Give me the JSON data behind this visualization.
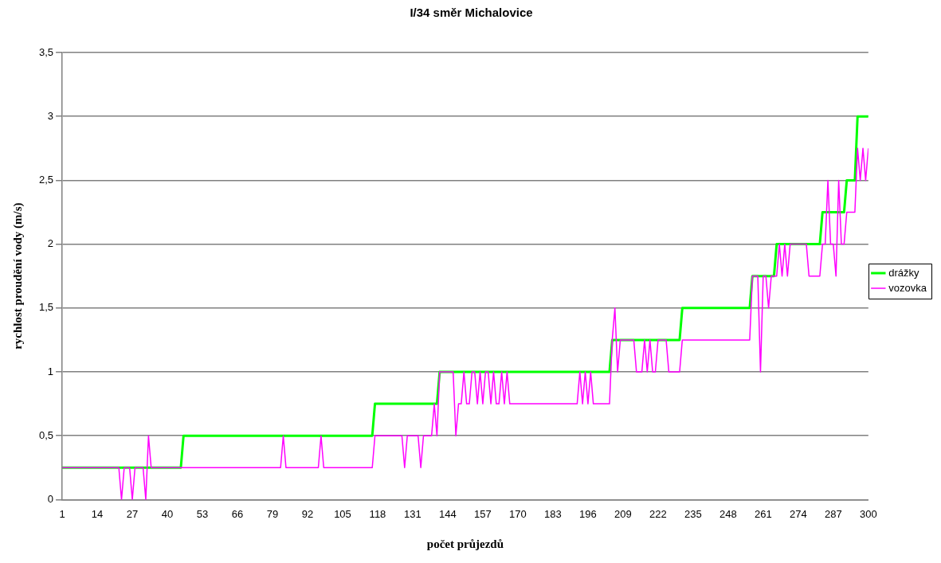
{
  "chart_data": {
    "type": "line",
    "title": "I/34 směr Michalovice",
    "xlabel": "počet průjezdů",
    "ylabel": "rychlost proudění vody (m/s)",
    "xlim": [
      1,
      300
    ],
    "xticks": [
      1,
      14,
      27,
      40,
      53,
      66,
      79,
      92,
      105,
      118,
      131,
      144,
      157,
      170,
      183,
      196,
      209,
      222,
      235,
      248,
      261,
      274,
      287,
      300
    ],
    "ylim": [
      0,
      3.5
    ],
    "yticks": [
      0,
      {
        "value": 0.5,
        "label": "0,5"
      },
      1,
      {
        "value": 1.5,
        "label": "1,5"
      },
      2,
      {
        "value": 2.5,
        "label": "2,5"
      },
      3,
      {
        "value": 3.5,
        "label": "3,5"
      }
    ],
    "grid": "y",
    "legend": "right",
    "marker": "none",
    "line_style": "solid",
    "series": [
      {
        "name": "drážky",
        "color": "#00ff00",
        "x": [
          1,
          45,
          46,
          116,
          117,
          140,
          141,
          204,
          205,
          230,
          231,
          256,
          257,
          265,
          266,
          282,
          283,
          291,
          292,
          295,
          296,
          300
        ],
        "values": [
          0.25,
          0.25,
          0.5,
          0.5,
          0.75,
          0.75,
          1,
          1,
          1.25,
          1.25,
          1.5,
          1.5,
          1.75,
          1.75,
          2,
          2,
          2.25,
          2.25,
          2.5,
          2.5,
          3,
          3
        ]
      },
      {
        "name": "vozovka",
        "color": "#ff00ff",
        "x": [
          1,
          22,
          23,
          24,
          26,
          27,
          28,
          31,
          32,
          33,
          34,
          82,
          83,
          84,
          96,
          97,
          98,
          116,
          117,
          127,
          128,
          129,
          133,
          134,
          135,
          138,
          139,
          140,
          141,
          146,
          147,
          148,
          149,
          150,
          151,
          152,
          153,
          154,
          155,
          156,
          157,
          158,
          159,
          160,
          161,
          162,
          163,
          164,
          165,
          166,
          167,
          192,
          193,
          194,
          195,
          196,
          197,
          198,
          204,
          205,
          206,
          207,
          208,
          213,
          214,
          216,
          217,
          218,
          219,
          220,
          221,
          222,
          225,
          226,
          230,
          231,
          256,
          257,
          259,
          260,
          261,
          262,
          263,
          264,
          266,
          267,
          268,
          269,
          270,
          271,
          277,
          278,
          282,
          283,
          284,
          285,
          286,
          287,
          288,
          289,
          290,
          291,
          292,
          295,
          296,
          297,
          298,
          299,
          300
        ],
        "values": [
          0.25,
          0.25,
          0,
          0.25,
          0.25,
          0,
          0.25,
          0.25,
          0,
          0.5,
          0.25,
          0.25,
          0.5,
          0.25,
          0.25,
          0.5,
          0.25,
          0.25,
          0.5,
          0.5,
          0.25,
          0.5,
          0.5,
          0.25,
          0.5,
          0.5,
          0.75,
          0.5,
          1,
          1,
          0.5,
          0.75,
          0.75,
          1,
          0.75,
          0.75,
          1,
          1,
          0.75,
          1,
          0.75,
          1,
          1,
          0.75,
          1,
          0.75,
          0.75,
          1,
          0.75,
          1,
          0.75,
          0.75,
          1,
          0.75,
          1,
          0.75,
          1,
          0.75,
          0.75,
          1.25,
          1.5,
          1,
          1.25,
          1.25,
          1,
          1,
          1.25,
          1,
          1.25,
          1,
          1,
          1.25,
          1.25,
          1,
          1,
          1.25,
          1.25,
          1.75,
          1.75,
          1,
          1.75,
          1.75,
          1.5,
          1.75,
          1.75,
          2,
          1.75,
          2,
          1.75,
          2,
          2,
          1.75,
          1.75,
          2,
          2,
          2.5,
          2,
          2,
          1.75,
          2.5,
          2,
          2,
          2.25,
          2.25,
          2.75,
          2.5,
          2.75,
          2.5,
          2.75
        ]
      }
    ]
  }
}
